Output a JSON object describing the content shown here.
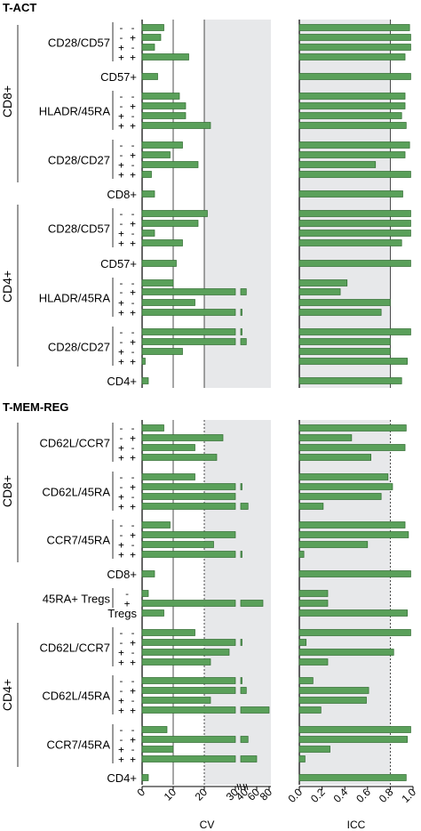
{
  "colors": {
    "bar_fill": "#5aa05a",
    "bar_stroke": "#2f6b2f",
    "shade": "#e7e8ea"
  },
  "chart_data": [
    {
      "type": "bar",
      "orientation": "horizontal",
      "xlabel": "CV",
      "xticks": [
        "0",
        "10",
        "20",
        "30",
        "40",
        "60",
        "80"
      ],
      "scale": "broken: linear 0-30, compressed 30-80",
      "shaded_region": [
        20,
        80
      ],
      "reference_lines": [
        10,
        20
      ],
      "sections": [
        {
          "title": "T-ACT",
          "groups": [
            {
              "side_label": "CD8+",
              "label": "CD28/CD57",
              "rows": [
                {
                  "sign": "- -",
                  "value": 7
                },
                {
                  "sign": "- +",
                  "value": 6
                },
                {
                  "sign": "+ -",
                  "value": 4
                },
                {
                  "sign": "+ +",
                  "value": 15
                }
              ]
            },
            {
              "side_label": "CD8+",
              "label": "CD57+",
              "rows": [
                {
                  "sign": "",
                  "value": 5
                }
              ]
            },
            {
              "side_label": "CD8+",
              "label": "HLADR/45RA",
              "rows": [
                {
                  "sign": "- -",
                  "value": 12
                },
                {
                  "sign": "- +",
                  "value": 14
                },
                {
                  "sign": "+ -",
                  "value": 14
                },
                {
                  "sign": "+ +",
                  "value": 22
                }
              ]
            },
            {
              "side_label": "CD8+",
              "label": "CD28/CD27",
              "rows": [
                {
                  "sign": "- -",
                  "value": 13
                },
                {
                  "sign": "- +",
                  "value": 9
                },
                {
                  "sign": "+ -",
                  "value": 18
                },
                {
                  "sign": "+ +",
                  "value": 3
                }
              ]
            },
            {
              "side_label": "CD8+",
              "label": "CD8+",
              "rows": [
                {
                  "sign": "",
                  "value": 4
                }
              ]
            },
            {
              "side_label": "CD4+",
              "label": "CD28/CD57",
              "rows": [
                {
                  "sign": "- -",
                  "value": 21
                },
                {
                  "sign": "- +",
                  "value": 18
                },
                {
                  "sign": "+ -",
                  "value": 4
                },
                {
                  "sign": "+ +",
                  "value": 13
                }
              ]
            },
            {
              "side_label": "CD4+",
              "label": "CD57+",
              "rows": [
                {
                  "sign": "",
                  "value": 11
                }
              ]
            },
            {
              "side_label": "CD4+",
              "label": "HLADR/45RA",
              "rows": [
                {
                  "sign": "- -",
                  "value": 10
                },
                {
                  "sign": "- +",
                  "value": 42
                },
                {
                  "sign": "+ -",
                  "value": 17
                },
                {
                  "sign": "+ +",
                  "value": 36
                }
              ]
            },
            {
              "side_label": "CD4+",
              "label": "CD28/CD27",
              "rows": [
                {
                  "sign": "- -",
                  "value": 35
                },
                {
                  "sign": "- +",
                  "value": 42
                },
                {
                  "sign": "+ -",
                  "value": 13
                },
                {
                  "sign": "+ +",
                  "value": 1
                }
              ]
            },
            {
              "side_label": "CD4+",
              "label": "CD4+",
              "rows": [
                {
                  "sign": "",
                  "value": 2
                }
              ]
            }
          ]
        },
        {
          "title": "T-MEM-REG",
          "groups": [
            {
              "side_label": "CD8+",
              "label": "CD62L/CCR7",
              "rows": [
                {
                  "sign": "- -",
                  "value": 7
                },
                {
                  "sign": "- +",
                  "value": 26
                },
                {
                  "sign": "+ -",
                  "value": 17
                },
                {
                  "sign": "+ +",
                  "value": 24
                }
              ]
            },
            {
              "side_label": "CD8+",
              "label": "CD62L/45RA",
              "rows": [
                {
                  "sign": "- -",
                  "value": 17
                },
                {
                  "sign": "- +",
                  "value": 33
                },
                {
                  "sign": "+ -",
                  "value": 30
                },
                {
                  "sign": "+ +",
                  "value": 45
                }
              ]
            },
            {
              "side_label": "CD8+",
              "label": "CCR7/45RA",
              "rows": [
                {
                  "sign": "- -",
                  "value": 9
                },
                {
                  "sign": "- +",
                  "value": 30
                },
                {
                  "sign": "+ -",
                  "value": 23
                },
                {
                  "sign": "+ +",
                  "value": 31
                }
              ]
            },
            {
              "side_label": "CD8+",
              "label": "CD8+",
              "rows": [
                {
                  "sign": "",
                  "value": 4
                }
              ]
            },
            {
              "side_label": "",
              "label": "45RA+ Tregs",
              "rows": [
                {
                  "sign": "-",
                  "value": 2
                },
                {
                  "sign": "+",
                  "value": 70
                }
              ]
            },
            {
              "side_label": "",
              "label": "Tregs",
              "rows": [
                {
                  "sign": "",
                  "value": 7
                }
              ]
            },
            {
              "side_label": "CD4+",
              "label": "CD62L/CCR7",
              "rows": [
                {
                  "sign": "- -",
                  "value": 17
                },
                {
                  "sign": "- +",
                  "value": 32
                },
                {
                  "sign": "+ -",
                  "value": 28
                },
                {
                  "sign": "+ +",
                  "value": 22
                }
              ]
            },
            {
              "side_label": "CD4+",
              "label": "CD62L/45RA",
              "rows": [
                {
                  "sign": "- -",
                  "value": 35
                },
                {
                  "sign": "- +",
                  "value": 42
                },
                {
                  "sign": "+ -",
                  "value": 22
                },
                {
                  "sign": "+ +",
                  "value": 80
                }
              ]
            },
            {
              "side_label": "CD4+",
              "label": "CCR7/45RA",
              "rows": [
                {
                  "sign": "- -",
                  "value": 8
                },
                {
                  "sign": "- +",
                  "value": 45
                },
                {
                  "sign": "+ -",
                  "value": 10
                },
                {
                  "sign": "+ +",
                  "value": 60
                }
              ]
            },
            {
              "side_label": "CD4+",
              "label": "CD4+",
              "rows": [
                {
                  "sign": "",
                  "value": 2
                }
              ]
            }
          ]
        }
      ]
    },
    {
      "type": "bar",
      "orientation": "horizontal",
      "xlabel": "ICC",
      "xticks": [
        "0.0",
        "0.2",
        "0.4",
        "0.6",
        "0.8",
        "1.0"
      ],
      "xlim": [
        0,
        1
      ],
      "shaded_region": [
        0,
        0.8
      ],
      "reference_lines": [
        0.8
      ],
      "sections": [
        {
          "title": "T-ACT",
          "values": [
            0.97,
            0.98,
            0.98,
            0.93,
            0.98,
            0.93,
            0.93,
            0.9,
            0.94,
            0.97,
            0.93,
            0.67,
            0.98,
            0.91,
            0.98,
            0.98,
            0.98,
            0.9,
            0.98,
            0.42,
            0.36,
            0.8,
            0.72,
            0.98,
            0.8,
            0.8,
            0.95,
            0.9
          ]
        },
        {
          "title": "T-MEM-REG",
          "values": [
            0.94,
            0.46,
            0.93,
            0.63,
            0.78,
            0.82,
            0.72,
            0.21,
            0.93,
            0.96,
            0.6,
            0.04,
            0.98,
            0.25,
            0.25,
            0.95,
            0.98,
            0.06,
            0.83,
            0.25,
            0.12,
            0.61,
            0.59,
            0.19,
            0.98,
            0.95,
            0.27,
            0.05,
            0.94
          ]
        }
      ]
    }
  ]
}
